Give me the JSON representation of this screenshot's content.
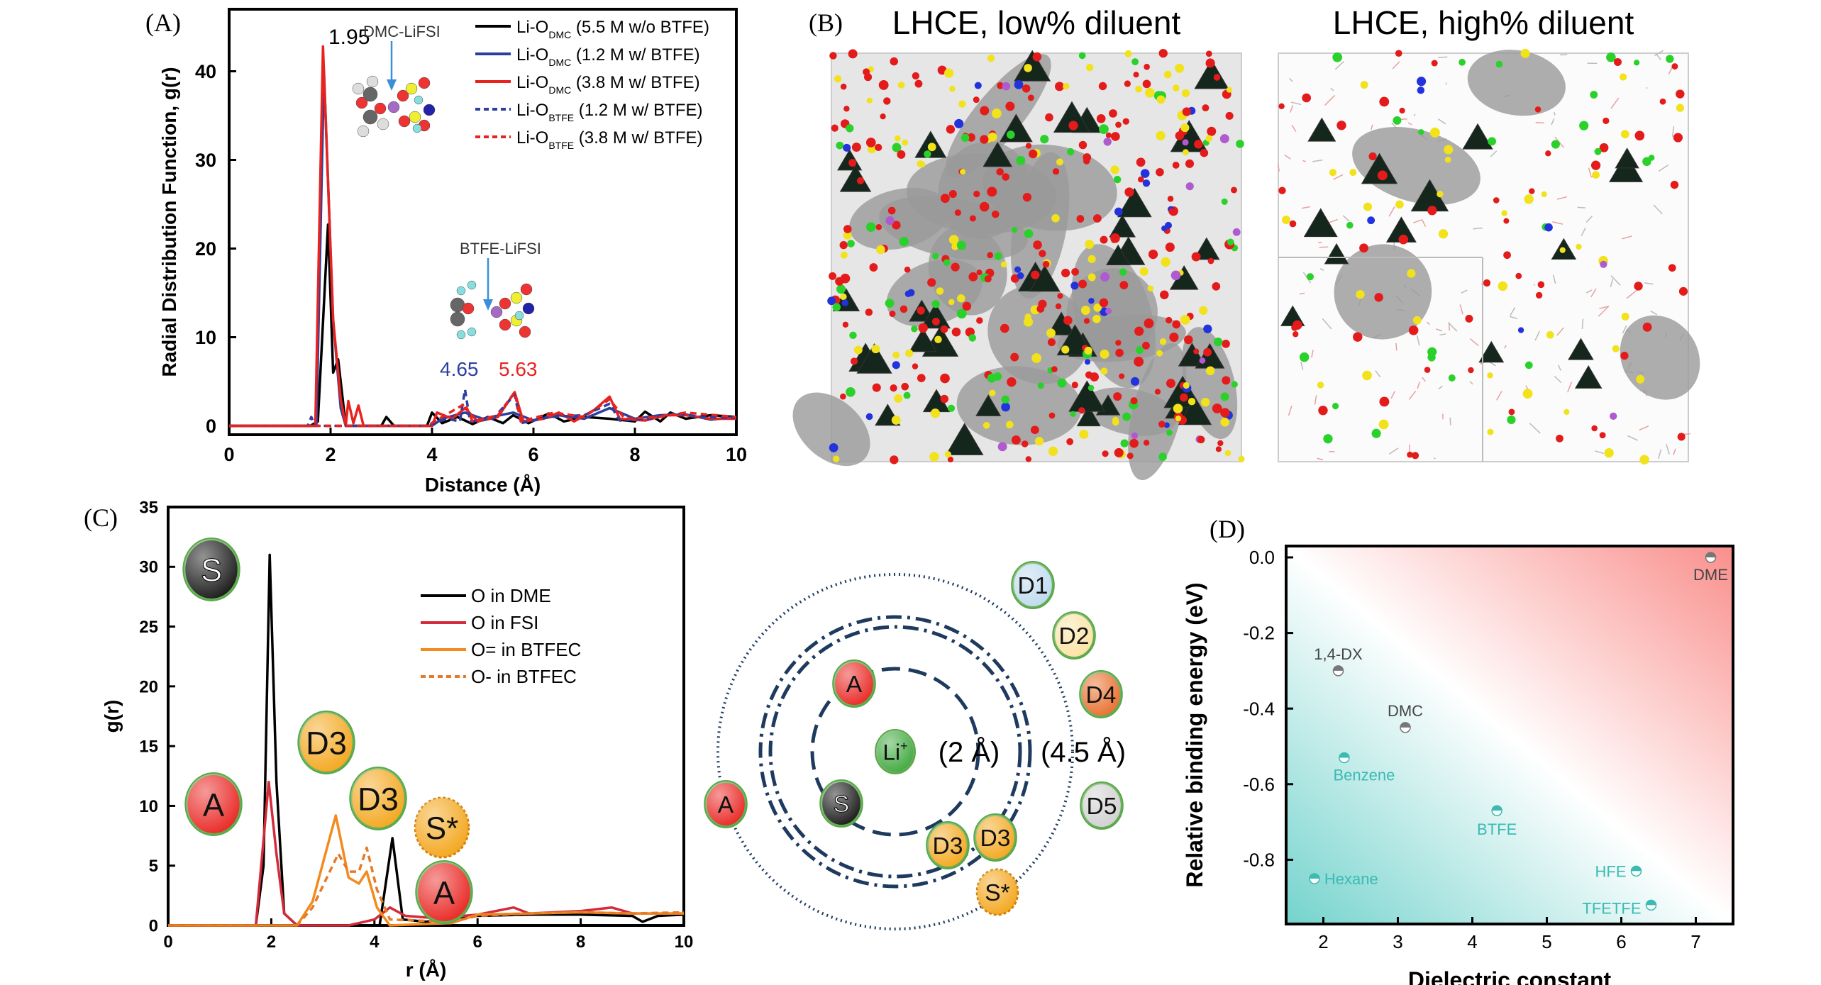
{
  "panel_labels": {
    "a": "(A)",
    "b": "(B)",
    "c": "(C)",
    "d": "(D)"
  },
  "panel_b": {
    "title_left": "LHCE, low% diluent",
    "title_right": "LHCE, high% diluent"
  },
  "chart_data": [
    {
      "id": "A",
      "type": "line",
      "xlabel": "Distance (Å)",
      "ylabel": "Radial Distribution Function, g(r)",
      "xlim": [
        0,
        10
      ],
      "ylim": [
        -1,
        47
      ],
      "xticks": [
        0,
        2,
        4,
        6,
        8,
        10
      ],
      "yticks": [
        0,
        10,
        20,
        30,
        40
      ],
      "legend_position": "top-right",
      "annotations": {
        "peak": "1.95",
        "dmc": "DMC-LiFSI",
        "btfe": "BTFE-LiFSI",
        "peak_blue": "4.65",
        "peak_red": "5.63"
      },
      "series": [
        {
          "name": "Li-O",
          "sub": "DMC",
          "cond": " (5.5 M w/o BTFE)",
          "color": "#000000",
          "dash": false,
          "points": [
            [
              0,
              0
            ],
            [
              1.6,
              0
            ],
            [
              1.75,
              0.5
            ],
            [
              1.95,
              22.7
            ],
            [
              2.05,
              6
            ],
            [
              2.15,
              7.5
            ],
            [
              2.3,
              0
            ],
            [
              3.0,
              0
            ],
            [
              3.1,
              1
            ],
            [
              3.25,
              0
            ],
            [
              3.9,
              0
            ],
            [
              4.0,
              1.5
            ],
            [
              4.2,
              0.3
            ],
            [
              4.5,
              1
            ],
            [
              4.8,
              0.2
            ],
            [
              5.1,
              1
            ],
            [
              5.4,
              0.3
            ],
            [
              5.6,
              1.2
            ],
            [
              5.9,
              0.3
            ],
            [
              6.3,
              1.4
            ],
            [
              6.6,
              0.5
            ],
            [
              7.0,
              1
            ],
            [
              7.5,
              0.8
            ],
            [
              8.0,
              0.5
            ],
            [
              8.2,
              1.6
            ],
            [
              8.5,
              0.5
            ],
            [
              8.7,
              1.5
            ],
            [
              9.0,
              0.8
            ],
            [
              9.5,
              1.2
            ],
            [
              10,
              1
            ]
          ]
        },
        {
          "name": "Li-O",
          "sub": "DMC",
          "cond": " (1.2 M w/ BTFE)",
          "color": "#2b3f9e",
          "dash": false,
          "points": [
            [
              0,
              0
            ],
            [
              1.72,
              0
            ],
            [
              1.87,
              40
            ],
            [
              2.05,
              12
            ],
            [
              2.2,
              2
            ],
            [
              2.3,
              0
            ],
            [
              4,
              0
            ],
            [
              4.2,
              0.8
            ],
            [
              4.65,
              1.5
            ],
            [
              5,
              0.8
            ],
            [
              5.6,
              1.5
            ],
            [
              6,
              0.6
            ],
            [
              6.5,
              1.2
            ],
            [
              7,
              0.8
            ],
            [
              7.5,
              2
            ],
            [
              8,
              0.8
            ],
            [
              8.5,
              1.2
            ],
            [
              9,
              1.3
            ],
            [
              9.5,
              0.7
            ],
            [
              10,
              1
            ]
          ]
        },
        {
          "name": "Li-O",
          "sub": "DMC",
          "cond": " (3.8 M w/ BTFE)",
          "color": "#e8231f",
          "dash": false,
          "points": [
            [
              0,
              0
            ],
            [
              1.7,
              0
            ],
            [
              1.85,
              42.8
            ],
            [
              2.05,
              12
            ],
            [
              2.2,
              3
            ],
            [
              2.3,
              0
            ],
            [
              2.35,
              2.8
            ],
            [
              2.45,
              0.3
            ],
            [
              2.55,
              2.3
            ],
            [
              2.65,
              0
            ],
            [
              4.0,
              0
            ],
            [
              4.1,
              1.5
            ],
            [
              4.4,
              0.8
            ],
            [
              4.65,
              2
            ],
            [
              4.9,
              0.5
            ],
            [
              5.3,
              1
            ],
            [
              5.63,
              3.8
            ],
            [
              5.8,
              0.5
            ],
            [
              6.2,
              0.8
            ],
            [
              6.5,
              1.5
            ],
            [
              6.8,
              0.5
            ],
            [
              7.2,
              1.8
            ],
            [
              7.5,
              3.3
            ],
            [
              7.7,
              0.8
            ],
            [
              8.2,
              0.6
            ],
            [
              8.6,
              1.2
            ],
            [
              9.0,
              1.2
            ],
            [
              9.5,
              0.8
            ],
            [
              10,
              0.8
            ]
          ]
        },
        {
          "name": "Li-O",
          "sub": "BTFE",
          "cond": " (1.2 M w/ BTFE)",
          "color": "#2b3f9e",
          "dash": true,
          "points": [
            [
              0,
              0
            ],
            [
              1.55,
              0
            ],
            [
              1.62,
              1
            ],
            [
              1.7,
              0
            ],
            [
              3.9,
              0
            ],
            [
              4.3,
              0.8
            ],
            [
              4.55,
              0.5
            ],
            [
              4.65,
              4.1
            ],
            [
              4.75,
              0.5
            ],
            [
              5.2,
              0.8
            ],
            [
              5.63,
              3.5
            ],
            [
              5.75,
              0.3
            ],
            [
              6.3,
              1
            ],
            [
              7,
              1.2
            ],
            [
              7.5,
              2.5
            ],
            [
              7.7,
              0.6
            ],
            [
              8.3,
              0.8
            ],
            [
              8.8,
              1.4
            ],
            [
              9.3,
              1
            ],
            [
              10,
              0.9
            ]
          ]
        },
        {
          "name": "Li-O",
          "sub": "BTFE",
          "cond": " (3.8 M w/ BTFE)",
          "color": "#e8231f",
          "dash": true,
          "points": [
            [
              0,
              0
            ],
            [
              3.9,
              0
            ],
            [
              4.2,
              1
            ],
            [
              4.65,
              2.5
            ],
            [
              4.8,
              0.5
            ],
            [
              5.3,
              1.2
            ],
            [
              5.63,
              3.8
            ],
            [
              5.75,
              0.5
            ],
            [
              6.4,
              1.5
            ],
            [
              7,
              1
            ],
            [
              7.5,
              3
            ],
            [
              7.8,
              0.8
            ],
            [
              8.5,
              1
            ],
            [
              9,
              1.5
            ],
            [
              10,
              1
            ]
          ]
        }
      ]
    },
    {
      "id": "C",
      "type": "line",
      "xlabel": "r (Å)",
      "ylabel": "g(r)",
      "xlim": [
        0,
        10
      ],
      "ylim": [
        0,
        35
      ],
      "xticks": [
        0,
        2,
        4,
        6,
        8,
        10
      ],
      "yticks": [
        0,
        5,
        10,
        15,
        20,
        25,
        30,
        35
      ],
      "legend_position": "top-center",
      "series": [
        {
          "name": "O in DME",
          "color": "#000000",
          "dash": false,
          "points": [
            [
              0,
              0
            ],
            [
              1.7,
              0
            ],
            [
              1.85,
              5
            ],
            [
              1.97,
              31
            ],
            [
              2.1,
              12
            ],
            [
              2.25,
              1
            ],
            [
              2.5,
              0
            ],
            [
              4.1,
              0
            ],
            [
              4.35,
              7.3
            ],
            [
              4.55,
              0.5
            ],
            [
              5.0,
              0.3
            ],
            [
              5.5,
              0.6
            ],
            [
              6,
              0.8
            ],
            [
              7,
              0.9
            ],
            [
              8,
              0.9
            ],
            [
              9,
              0.8
            ],
            [
              9.2,
              0.3
            ],
            [
              9.5,
              0.8
            ],
            [
              10,
              0.9
            ]
          ]
        },
        {
          "name": "O in FSI",
          "color": "#d42a3a",
          "dash": false,
          "points": [
            [
              0,
              0
            ],
            [
              1.7,
              0
            ],
            [
              1.95,
              12
            ],
            [
              2.1,
              6
            ],
            [
              2.25,
              1
            ],
            [
              2.5,
              0
            ],
            [
              3.5,
              0
            ],
            [
              4.0,
              0.5
            ],
            [
              4.3,
              1.5
            ],
            [
              4.6,
              0.8
            ],
            [
              5.2,
              0.6
            ],
            [
              6,
              0.9
            ],
            [
              6.7,
              1.5
            ],
            [
              7,
              1
            ],
            [
              8,
              1.2
            ],
            [
              8.6,
              1.5
            ],
            [
              9,
              1
            ],
            [
              10,
              1
            ]
          ]
        },
        {
          "name": "O= in BTFEC",
          "color": "#f28a1e",
          "dash": false,
          "points": [
            [
              0,
              0
            ],
            [
              2.5,
              0
            ],
            [
              2.8,
              2
            ],
            [
              3.25,
              9.2
            ],
            [
              3.5,
              4
            ],
            [
              3.7,
              3.5
            ],
            [
              3.85,
              4.5
            ],
            [
              4.05,
              1.5
            ],
            [
              4.3,
              0
            ],
            [
              5.5,
              0.2
            ],
            [
              6,
              0.9
            ],
            [
              7,
              1
            ],
            [
              8,
              1.1
            ],
            [
              9,
              1
            ],
            [
              10,
              1
            ]
          ]
        },
        {
          "name": "O- in BTFEC",
          "color": "#e57a2a",
          "dash": true,
          "points": [
            [
              0,
              0
            ],
            [
              2.5,
              0
            ],
            [
              2.8,
              1.5
            ],
            [
              3.3,
              6
            ],
            [
              3.5,
              4.5
            ],
            [
              3.7,
              4.5
            ],
            [
              3.85,
              6.5
            ],
            [
              4.05,
              3
            ],
            [
              4.3,
              0.5
            ],
            [
              5.5,
              0.3
            ],
            [
              6,
              0.8
            ],
            [
              7,
              1
            ],
            [
              8,
              1.1
            ],
            [
              9,
              1
            ],
            [
              10,
              1.1
            ]
          ]
        }
      ],
      "overlay_bubbles": [
        "S",
        "A",
        "D3",
        "D3",
        "S*",
        "A"
      ]
    },
    {
      "id": "D",
      "type": "scatter",
      "xlabel": "Dielectric constant",
      "ylabel": "Relative binding energy (eV)",
      "xlim": [
        1.5,
        7.5
      ],
      "ylim": [
        -0.97,
        0.03
      ],
      "xticks": [
        2,
        3,
        4,
        5,
        6,
        7
      ],
      "yticks": [
        "0.0",
        "-0.2",
        "-0.4",
        "-0.6",
        "-0.8"
      ],
      "background": {
        "top_right": "#f98f8c",
        "middle": "#ffffff",
        "bottom_left": "#74d3cd"
      },
      "points": [
        {
          "label": "DME",
          "x": 7.2,
          "y": 0.0,
          "color": "#777777"
        },
        {
          "label": "1,4-DX",
          "x": 2.2,
          "y": -0.3,
          "color": "#777777"
        },
        {
          "label": "DMC",
          "x": 3.1,
          "y": -0.45,
          "color": "#777777"
        },
        {
          "label": "Benzene",
          "x": 2.28,
          "y": -0.53,
          "color": "#3bbab3"
        },
        {
          "label": "BTFE",
          "x": 4.33,
          "y": -0.67,
          "color": "#3bbab3"
        },
        {
          "label": "Hexane",
          "x": 1.88,
          "y": -0.85,
          "color": "#3bbab3"
        },
        {
          "label": "HFE",
          "x": 6.2,
          "y": -0.83,
          "color": "#3bbab3"
        },
        {
          "label": "TFETFE",
          "x": 6.4,
          "y": -0.92,
          "color": "#3bbab3"
        }
      ]
    }
  ],
  "solvation_diagram": {
    "center": "Li",
    "center_sup": "+",
    "inner_radius_label": "(2 Å)",
    "outer_radius_label": "(4.5 Å)",
    "bubbles": [
      "A",
      "S",
      "D3",
      "D3",
      "S*",
      "A",
      "D1",
      "D2",
      "D4",
      "D5"
    ]
  },
  "bubble_colors": {
    "S": "#111111",
    "A": "#e8201c",
    "D3": "#f3a416",
    "S*": "#f3a416",
    "D1": "#bcd9ee",
    "D2": "#fbe2a0",
    "D4": "#e86a26",
    "D5": "#cfcfcf",
    "Li": "#3aa63a"
  }
}
